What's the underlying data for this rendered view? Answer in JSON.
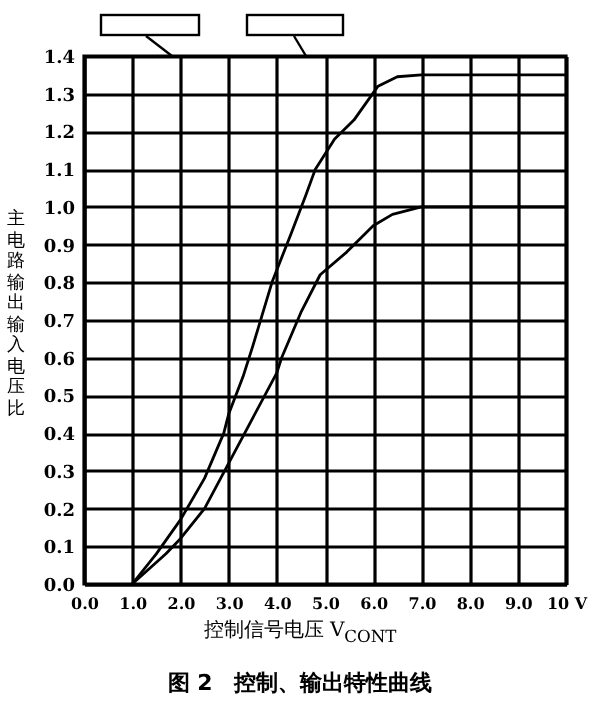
{
  "chart_data": {
    "type": "line",
    "title": "图 2　控制、输出特性曲线",
    "xlabel": "控制信号电压 V$_{CONT}$",
    "ylabel": "主电路输出输入电压比",
    "series": [
      {
        "color": "#000000",
        "x": [
          1.0,
          1.5,
          2.0,
          2.5,
          2.9,
          3.0,
          3.3,
          3.5,
          3.9,
          4.3,
          4.6,
          4.8,
          5.2,
          5.6,
          6.1,
          6.5,
          7.0,
          10.0
        ],
        "values": [
          0.0,
          0.08,
          0.17,
          0.28,
          0.4,
          0.45,
          0.55,
          0.63,
          0.8,
          0.93,
          1.03,
          1.1,
          1.18,
          1.23,
          1.32,
          1.345,
          1.35,
          1.35
        ]
      },
      {
        "color": "#000000",
        "x": [
          1.0,
          1.7,
          2.0,
          2.5,
          3.0,
          3.5,
          4.0,
          4.1,
          4.5,
          4.9,
          5.45,
          6.0,
          6.4,
          7.0,
          10.0
        ],
        "values": [
          0.0,
          0.08,
          0.12,
          0.2,
          0.32,
          0.44,
          0.56,
          0.6,
          0.72,
          0.82,
          0.88,
          0.95,
          0.98,
          1.0,
          1.0
        ]
      }
    ],
    "xlim": [
      0,
      10
    ],
    "xticks": [
      {
        "value": 0,
        "label": "0.0"
      },
      {
        "value": 1,
        "label": "1.0"
      },
      {
        "value": 2,
        "label": "2.0"
      },
      {
        "value": 3,
        "label": "3.0"
      },
      {
        "value": 4,
        "label": "4.0"
      },
      {
        "value": 5,
        "label": "5.0"
      },
      {
        "value": 6,
        "label": "6.0"
      },
      {
        "value": 7,
        "label": "7.0"
      },
      {
        "value": 8,
        "label": "8.0"
      },
      {
        "value": 9,
        "label": "9.0"
      },
      {
        "value": 10,
        "label": "10 V"
      }
    ],
    "ylim": [
      0,
      1.4
    ],
    "yticks": [
      {
        "value": 0,
        "label": "0.0"
      },
      {
        "value": 0.1,
        "label": "0.1"
      },
      {
        "value": 0.2,
        "label": "0.2"
      },
      {
        "value": 0.3,
        "label": "0.3"
      },
      {
        "value": 0.4,
        "label": "0.4"
      },
      {
        "value": 0.5,
        "label": "0.5"
      },
      {
        "value": 0.6,
        "label": "0.6"
      },
      {
        "value": 0.7,
        "label": "0.7"
      },
      {
        "value": 0.8,
        "label": "0.8"
      },
      {
        "value": 0.9,
        "label": "0.9"
      },
      {
        "value": 1.0,
        "label": "1.0"
      },
      {
        "value": 1.1,
        "label": "1.1"
      },
      {
        "value": 1.2,
        "label": "1.2"
      },
      {
        "value": 1.3,
        "label": "1.3"
      },
      {
        "value": 1.4,
        "label": "1.4"
      }
    ],
    "grid": true,
    "marker": "none",
    "line_style": "solid"
  }
}
